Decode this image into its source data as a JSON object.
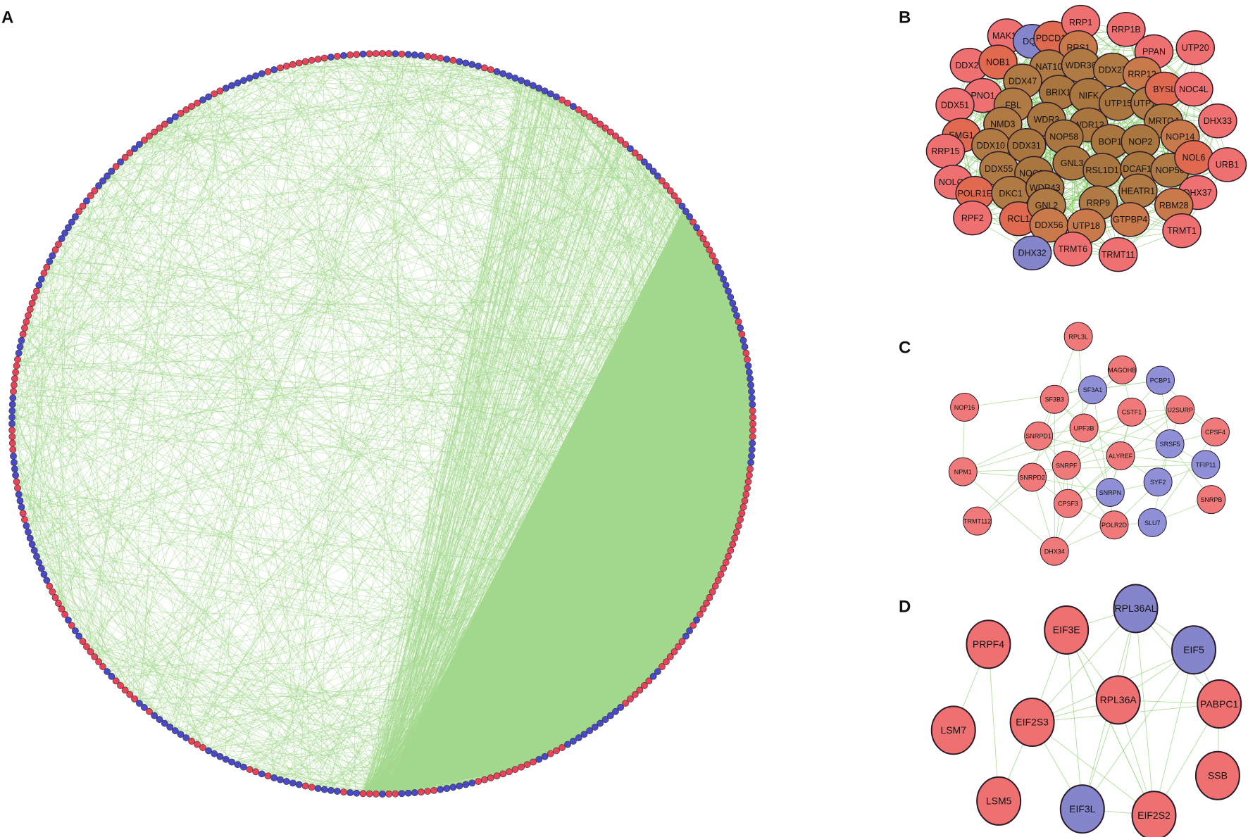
{
  "panels": [
    {
      "label": "A"
    },
    {
      "label": "B",
      "nodes": [
        {
          "label": "MAK16",
          "color": "#ef7070"
        },
        {
          "label": "DQX",
          "color": "#8585cc"
        },
        {
          "label": "PDCD11",
          "color": "#e06a50"
        },
        {
          "label": "RRP1",
          "color": "#ef7070"
        },
        {
          "label": "RRP1B",
          "color": "#ef7070"
        },
        {
          "label": "RRS1",
          "color": "#c97a4a"
        },
        {
          "label": "PPAN",
          "color": "#ef7070"
        },
        {
          "label": "UTP20",
          "color": "#ef7070"
        },
        {
          "label": "DDX21",
          "color": "#ef7070"
        },
        {
          "label": "NOB1",
          "color": "#e06a50"
        },
        {
          "label": "NAT10",
          "color": "#b07a45"
        },
        {
          "label": "WDR36",
          "color": "#b07a45"
        },
        {
          "label": "DDX27",
          "color": "#b07a45"
        },
        {
          "label": "RRP12",
          "color": "#c97a4a"
        },
        {
          "label": "DDX47",
          "color": "#b07a45"
        },
        {
          "label": "BRIX1",
          "color": "#a8763e"
        },
        {
          "label": "NIFK",
          "color": "#a8763e"
        },
        {
          "label": "UTP15",
          "color": "#a8763e"
        },
        {
          "label": "UTP14A",
          "color": "#b07a45"
        },
        {
          "label": "BYSL",
          "color": "#e06a50"
        },
        {
          "label": "NOC4L",
          "color": "#ef7070"
        },
        {
          "label": "PNO1",
          "color": "#ef7070"
        },
        {
          "label": "FBL",
          "color": "#b07a45"
        },
        {
          "label": "DDX51",
          "color": "#ef7070"
        },
        {
          "label": "NMD3",
          "color": "#b07a45"
        },
        {
          "label": "WDR3",
          "color": "#a8763e"
        },
        {
          "label": "WDR12",
          "color": "#a8763e"
        },
        {
          "label": "MRTO4",
          "color": "#b07a45"
        },
        {
          "label": "DHX33",
          "color": "#ef7070"
        },
        {
          "label": "EMG1",
          "color": "#e06a50"
        },
        {
          "label": "NOP58",
          "color": "#a8763e"
        },
        {
          "label": "BOP1",
          "color": "#a8763e"
        },
        {
          "label": "NOP2",
          "color": "#a8763e"
        },
        {
          "label": "NOP14",
          "color": "#c97a4a"
        },
        {
          "label": "RRP15",
          "color": "#ef7070"
        },
        {
          "label": "DDX10",
          "color": "#b07a45"
        },
        {
          "label": "DDX31",
          "color": "#a8763e"
        },
        {
          "label": "NOLC1",
          "color": "#ef7070"
        },
        {
          "label": "DDX55",
          "color": "#b07a45"
        },
        {
          "label": "NOC3L",
          "color": "#a8763e"
        },
        {
          "label": "GNL3",
          "color": "#a8763e"
        },
        {
          "label": "RSL1D1",
          "color": "#a8763e"
        },
        {
          "label": "DCAF13",
          "color": "#a8763e"
        },
        {
          "label": "NOP56",
          "color": "#b07a45"
        },
        {
          "label": "NOL6",
          "color": "#e06a50"
        },
        {
          "label": "URB1",
          "color": "#ef7070"
        },
        {
          "label": "POLR1E",
          "color": "#e06a50"
        },
        {
          "label": "DKC1",
          "color": "#b07a45"
        },
        {
          "label": "WDR43",
          "color": "#a8763e"
        },
        {
          "label": "HEATR1",
          "color": "#b07a45"
        },
        {
          "label": "DHX37",
          "color": "#ef7070"
        },
        {
          "label": "RPF2",
          "color": "#ef7070"
        },
        {
          "label": "RCL1",
          "color": "#e06a50"
        },
        {
          "label": "GNL2",
          "color": "#b07a45"
        },
        {
          "label": "RRP9",
          "color": "#b07a45"
        },
        {
          "label": "RBM28",
          "color": "#c97a4a"
        },
        {
          "label": "DDX56",
          "color": "#c97a4a"
        },
        {
          "label": "UTP18",
          "color": "#c97a4a"
        },
        {
          "label": "GTPBP4",
          "color": "#c97a4a"
        },
        {
          "label": "TRMT1",
          "color": "#ef7070"
        },
        {
          "label": "DHX32",
          "color": "#8585cc"
        },
        {
          "label": "TRMT6",
          "color": "#ef7070"
        },
        {
          "label": "TRMT11",
          "color": "#ef7070"
        }
      ]
    },
    {
      "label": "C",
      "nodes": [
        {
          "label": "RPL3L",
          "color": "#f07a7a"
        },
        {
          "label": "MAGOHB",
          "color": "#f07a7a"
        },
        {
          "label": "PCBP1",
          "color": "#9090d8"
        },
        {
          "label": "SF3A1",
          "color": "#9090d8"
        },
        {
          "label": "SF3B3",
          "color": "#f07a7a"
        },
        {
          "label": "CSTF1",
          "color": "#f07a7a"
        },
        {
          "label": "U2SURP",
          "color": "#f07a7a"
        },
        {
          "label": "NOP16",
          "color": "#f07a7a"
        },
        {
          "label": "UPF3B",
          "color": "#f07a7a"
        },
        {
          "label": "CPSF4",
          "color": "#f07a7a"
        },
        {
          "label": "SNRPD1",
          "color": "#f07a7a"
        },
        {
          "label": "SRSF5",
          "color": "#9090d8"
        },
        {
          "label": "ALYREF",
          "color": "#f07a7a"
        },
        {
          "label": "TFIP11",
          "color": "#9090d8"
        },
        {
          "label": "NPM1",
          "color": "#f07a7a"
        },
        {
          "label": "SNRPF",
          "color": "#f07a7a"
        },
        {
          "label": "SNRPD2",
          "color": "#f07a7a"
        },
        {
          "label": "SNRPN",
          "color": "#9090d8"
        },
        {
          "label": "SYF2",
          "color": "#9090d8"
        },
        {
          "label": "SNRPB",
          "color": "#f07a7a"
        },
        {
          "label": "CPSF3",
          "color": "#f07a7a"
        },
        {
          "label": "POLR2D",
          "color": "#f07a7a"
        },
        {
          "label": "SLU7",
          "color": "#9090d8"
        },
        {
          "label": "TRMT112",
          "color": "#f07a7a"
        },
        {
          "label": "DHX34",
          "color": "#f07a7a"
        }
      ]
    },
    {
      "label": "D",
      "nodes": [
        {
          "label": "RPL36AL",
          "color": "#8585cc"
        },
        {
          "label": "EIF3E",
          "color": "#ef7070"
        },
        {
          "label": "PRPF4",
          "color": "#ef7070"
        },
        {
          "label": "EIF5",
          "color": "#8585cc"
        },
        {
          "label": "RPL36A",
          "color": "#ef7070"
        },
        {
          "label": "PABPC1",
          "color": "#ef7070"
        },
        {
          "label": "EIF2S3",
          "color": "#ef7070"
        },
        {
          "label": "LSM7",
          "color": "#ef7070"
        },
        {
          "label": "SSB",
          "color": "#ef7070"
        },
        {
          "label": "LSM5",
          "color": "#ef7070"
        },
        {
          "label": "EIF3L",
          "color": "#8585cc"
        },
        {
          "label": "EIF2S2",
          "color": "#ef7070"
        }
      ]
    }
  ]
}
